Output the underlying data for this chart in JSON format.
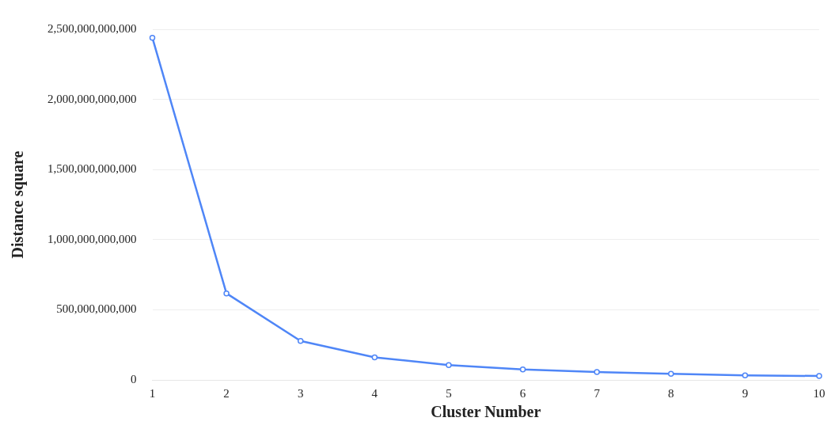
{
  "chart_data": {
    "type": "line",
    "xlabel": "Cluster Number",
    "ylabel": "Distance square",
    "categories": [
      "1",
      "2",
      "3",
      "4",
      "5",
      "6",
      "7",
      "8",
      "9",
      "10"
    ],
    "series": [
      {
        "color": "#4f86f7",
        "values": [
          2440000000000,
          617000000000,
          278000000000,
          161000000000,
          106000000000,
          75000000000,
          56000000000,
          44000000000,
          33000000000,
          28000000000
        ]
      }
    ],
    "ylim": [
      0,
      2500000000000
    ],
    "yticks": [
      {
        "value": 0,
        "label": "0"
      },
      {
        "value": 500000000000,
        "label": "500,000,000,000"
      },
      {
        "value": 1000000000000,
        "label": "1,000,000,000,000"
      },
      {
        "value": 1500000000000,
        "label": "1,500,000,000,000"
      },
      {
        "value": 2000000000000,
        "label": "2,000,000,000,000"
      },
      {
        "value": 2500000000000,
        "label": "2,500,000,000,000"
      }
    ],
    "grid": "y",
    "marker": "circle",
    "legend": false
  }
}
